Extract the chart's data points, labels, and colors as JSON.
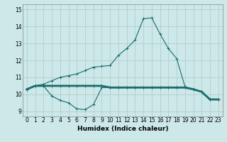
{
  "title": "",
  "xlabel": "Humidex (Indice chaleur)",
  "x_ticks": [
    0,
    1,
    2,
    3,
    4,
    5,
    6,
    7,
    8,
    9,
    10,
    11,
    12,
    13,
    14,
    15,
    16,
    17,
    18,
    19,
    20,
    21,
    22,
    23
  ],
  "ylim": [
    8.7,
    15.3
  ],
  "xlim": [
    -0.5,
    23.5
  ],
  "background_color": "#cce8e8",
  "grid_color": "#b0c8c8",
  "line_color": "#1a6b6b",
  "line1_x": [
    0,
    1,
    2,
    3,
    4,
    5,
    6,
    7,
    8,
    9,
    10,
    11,
    12,
    13,
    14,
    15,
    16,
    17,
    18,
    19,
    20,
    21,
    22,
    23
  ],
  "line1_y": [
    10.3,
    10.5,
    10.5,
    9.9,
    9.65,
    9.5,
    9.15,
    9.1,
    9.4,
    10.4,
    10.4,
    10.4,
    10.4,
    10.4,
    10.4,
    10.4,
    10.4,
    10.4,
    10.4,
    10.4,
    10.3,
    10.15,
    9.7,
    9.7
  ],
  "line2_x": [
    0,
    1,
    2,
    3,
    4,
    5,
    6,
    7,
    8,
    9,
    10,
    11,
    12,
    13,
    14,
    15,
    16,
    17,
    18,
    19,
    20,
    21,
    22,
    23
  ],
  "line2_y": [
    10.3,
    10.5,
    10.5,
    10.5,
    10.5,
    10.5,
    10.5,
    10.5,
    10.5,
    10.5,
    10.4,
    10.4,
    10.4,
    10.4,
    10.4,
    10.4,
    10.4,
    10.4,
    10.4,
    10.4,
    10.3,
    10.15,
    9.7,
    9.7
  ],
  "line3_x": [
    0,
    1,
    2,
    3,
    4,
    5,
    6,
    7,
    8,
    9,
    10,
    11,
    12,
    13,
    14,
    15,
    16,
    17,
    18,
    19,
    20,
    21,
    22,
    23
  ],
  "line3_y": [
    10.3,
    10.5,
    10.6,
    10.8,
    11.0,
    11.1,
    11.2,
    11.4,
    11.6,
    11.65,
    11.7,
    12.3,
    12.7,
    13.2,
    14.45,
    14.5,
    13.55,
    12.7,
    12.1,
    10.45,
    10.3,
    10.15,
    9.7,
    9.7
  ]
}
